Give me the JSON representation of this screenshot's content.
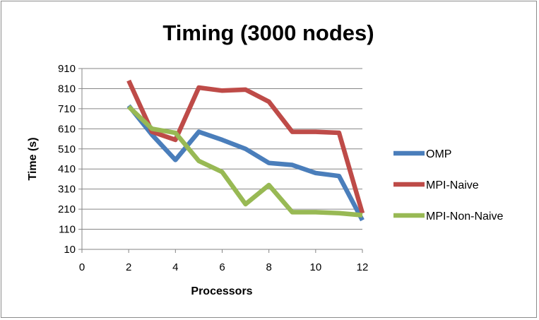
{
  "chart_data": {
    "type": "line",
    "title": "Timing (3000 nodes)",
    "xlabel": "Processors",
    "ylabel": "Time (s)",
    "xlim": [
      0,
      12
    ],
    "ylim": [
      10,
      910
    ],
    "xticks": [
      0,
      2,
      4,
      6,
      8,
      10,
      12
    ],
    "yticks": [
      10,
      110,
      210,
      310,
      410,
      510,
      610,
      710,
      810,
      910
    ],
    "grid": "horizontal",
    "legend_position": "right",
    "x": [
      2,
      3,
      4,
      5,
      6,
      7,
      8,
      9,
      10,
      11,
      12
    ],
    "series": [
      {
        "name": "OMP",
        "color": "#4a7ebb",
        "values": [
          725,
          580,
          455,
          595,
          555,
          510,
          440,
          430,
          390,
          375,
          155
        ]
      },
      {
        "name": "MPI-Naive",
        "color": "#be4b48",
        "values": [
          850,
          595,
          555,
          815,
          800,
          805,
          745,
          595,
          595,
          590,
          190
        ]
      },
      {
        "name": "MPI-Non-Naive",
        "color": "#98b954",
        "values": [
          720,
          610,
          590,
          450,
          395,
          235,
          330,
          195,
          195,
          190,
          180
        ]
      }
    ]
  }
}
